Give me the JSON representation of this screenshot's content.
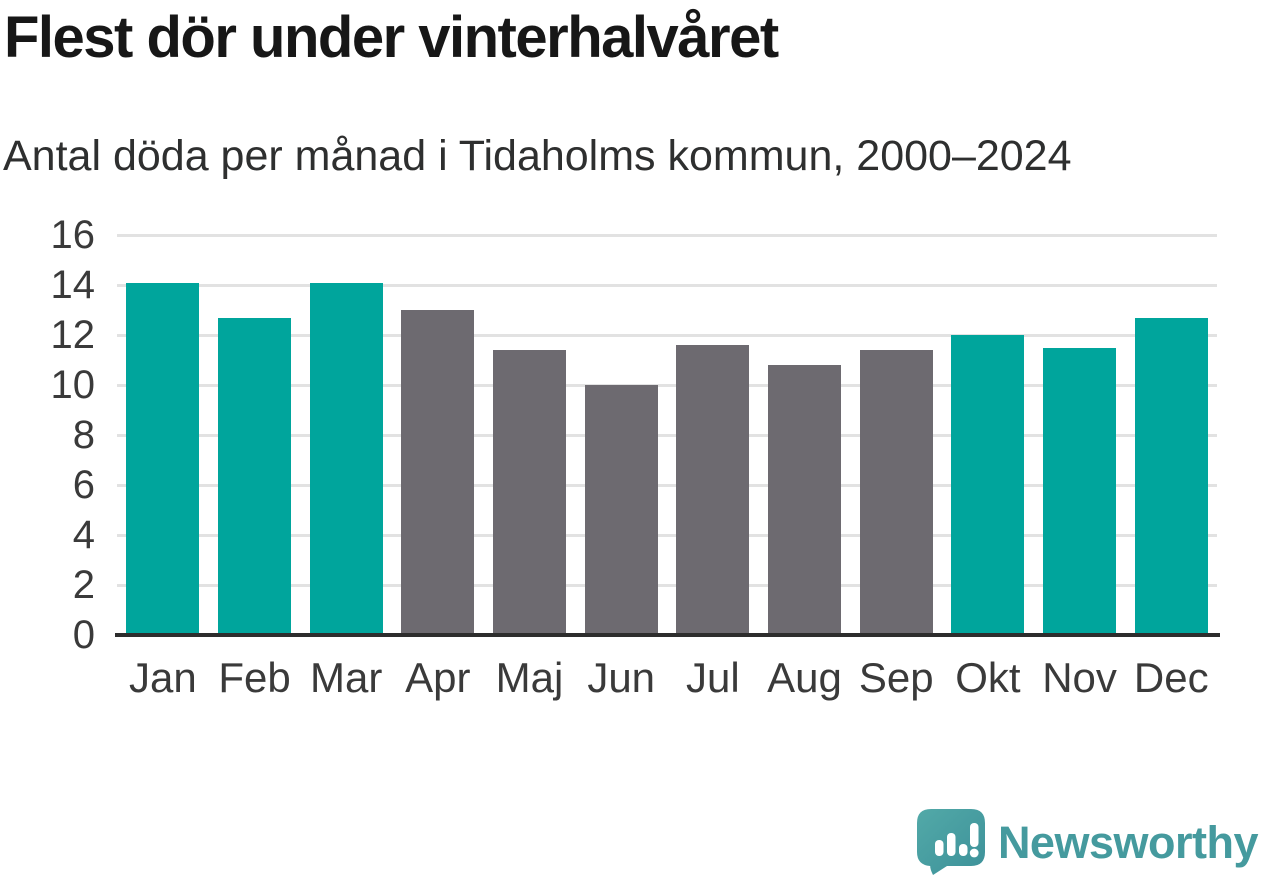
{
  "header": {
    "title": "Flest dör under vinterhalvåret",
    "subtitle": "Antal döda per månad i Tidaholms kommun, 2000–2024"
  },
  "chart_data": {
    "type": "bar",
    "title": "Flest dör under vinterhalvåret",
    "subtitle": "Antal döda per månad i Tidaholms kommun, 2000–2024",
    "categories": [
      "Jan",
      "Feb",
      "Mar",
      "Apr",
      "Maj",
      "Jun",
      "Jul",
      "Aug",
      "Sep",
      "Okt",
      "Nov",
      "Dec"
    ],
    "values": [
      14.1,
      12.7,
      14.1,
      13.0,
      11.4,
      10.0,
      11.6,
      10.8,
      11.4,
      12.0,
      11.5,
      12.7
    ],
    "bar_colors": [
      "#00a59c",
      "#00a59c",
      "#00a59c",
      "#6d6a70",
      "#6d6a70",
      "#6d6a70",
      "#6d6a70",
      "#6d6a70",
      "#6d6a70",
      "#00a59c",
      "#00a59c",
      "#00a59c"
    ],
    "highlight_color": "#00a59c",
    "base_color": "#6d6a70",
    "xlabel": "",
    "ylabel": "",
    "ylim": [
      0,
      16
    ],
    "yticks": [
      0,
      2,
      4,
      6,
      8,
      10,
      12,
      14,
      16
    ],
    "grid": true,
    "legend_position": "none",
    "gridline_color": "#e2e2e2",
    "axis_color": "#2d2d2d"
  },
  "branding": {
    "logo_text": "Newsworthy",
    "logo_text_color": "#459a9e",
    "logo_mark_color": "#4aa3a5",
    "logo_icon": "speech-bubble-bar-chart-exclamation"
  }
}
